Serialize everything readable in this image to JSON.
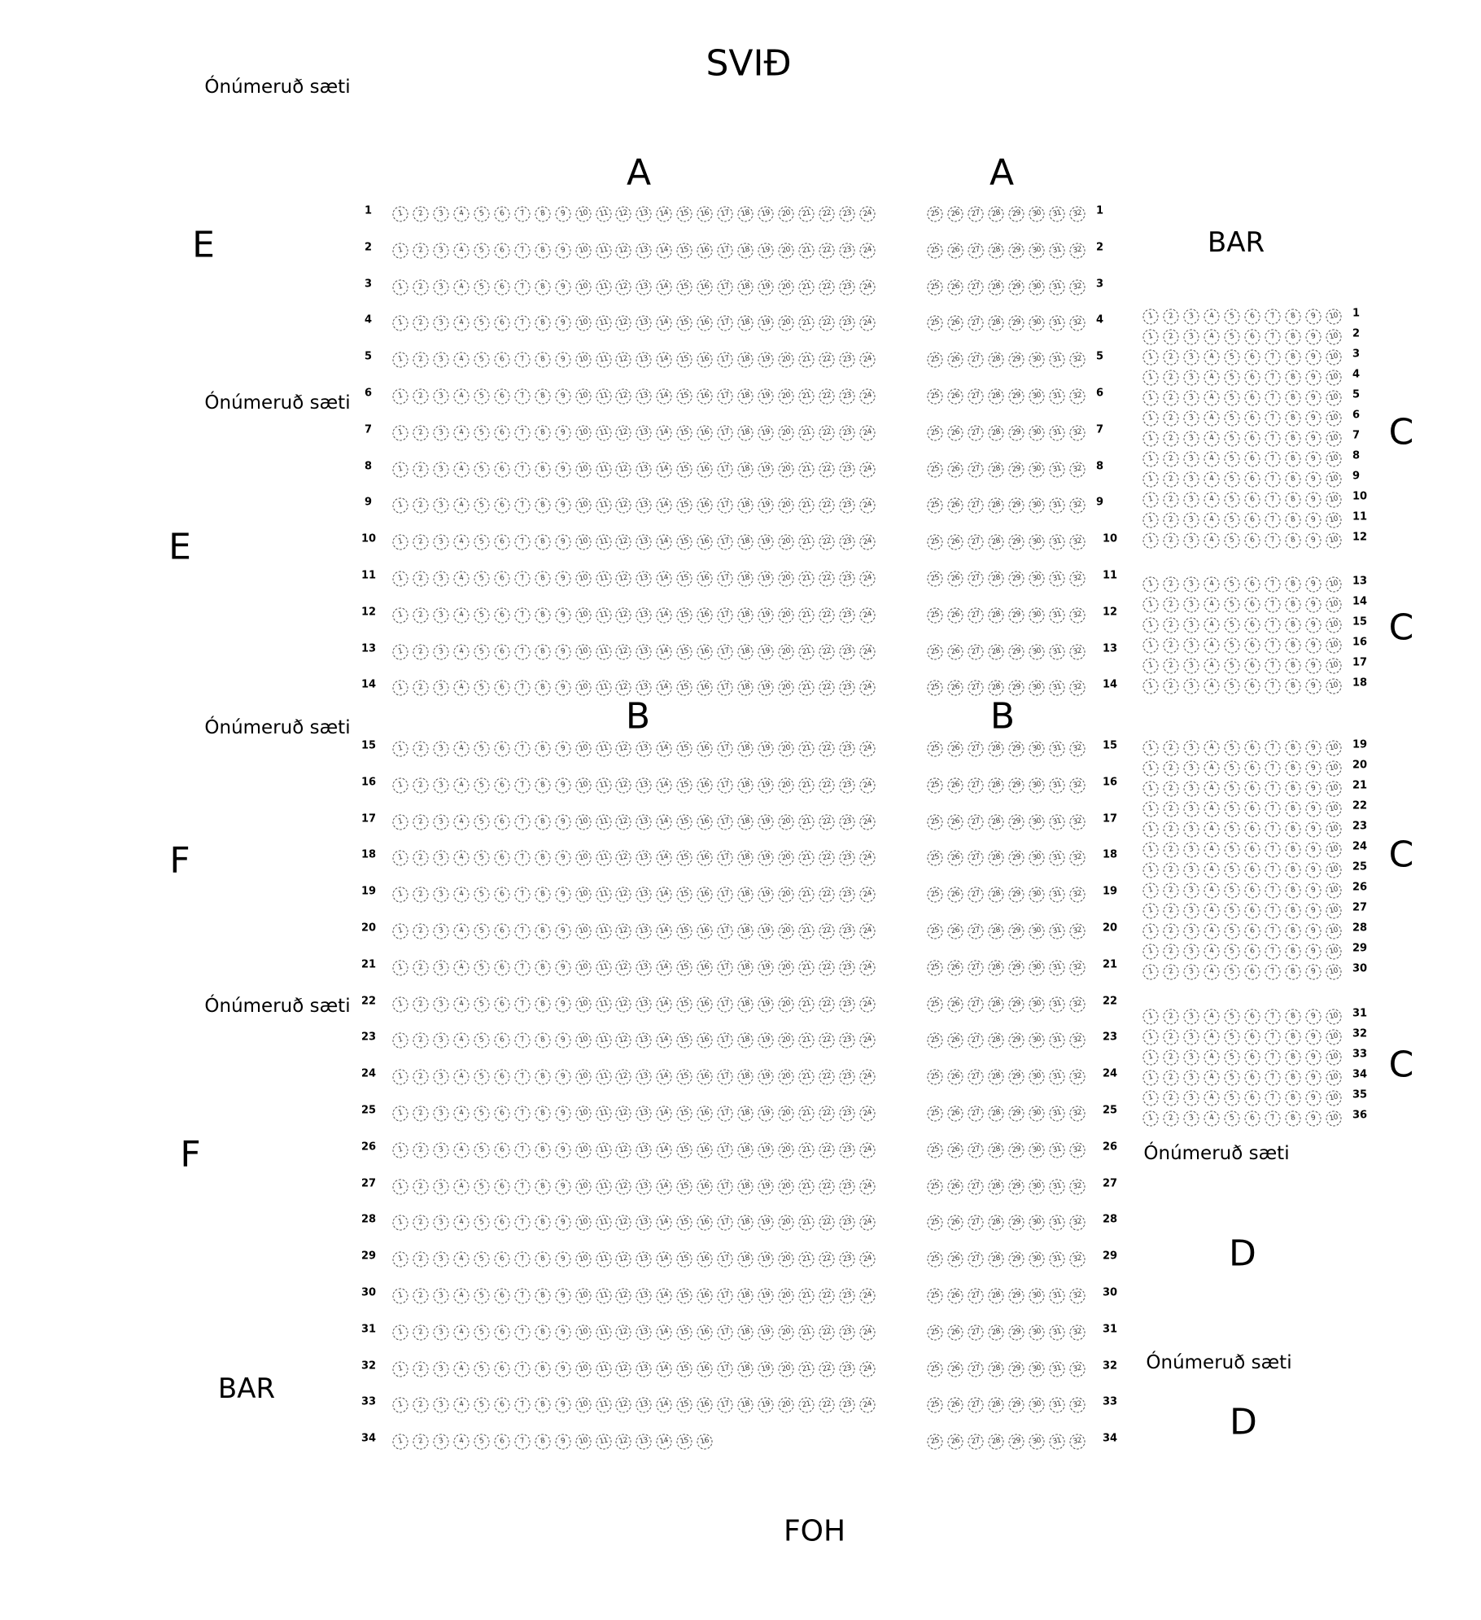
{
  "labels": {
    "stage": "SVIÐ",
    "foh": "FOH",
    "unnumbered": "Ónúmeruð sæti",
    "bar": "BAR",
    "section_a": "A",
    "section_b": "B",
    "section_c": "C",
    "section_d": "D",
    "section_e": "E",
    "section_f": "F"
  },
  "main_block": {
    "rows": [
      {
        "row": "1",
        "left": [
          1,
          24
        ],
        "right": [
          25,
          32
        ]
      },
      {
        "row": "2",
        "left": [
          1,
          24
        ],
        "right": [
          25,
          32
        ]
      },
      {
        "row": "3",
        "left": [
          1,
          24
        ],
        "right": [
          25,
          32
        ]
      },
      {
        "row": "4",
        "left": [
          1,
          24
        ],
        "right": [
          25,
          32
        ]
      },
      {
        "row": "5",
        "left": [
          1,
          24
        ],
        "right": [
          25,
          32
        ]
      },
      {
        "row": "6",
        "left": [
          1,
          24
        ],
        "right": [
          25,
          32
        ]
      },
      {
        "row": "7",
        "left": [
          1,
          24
        ],
        "right": [
          25,
          32
        ]
      },
      {
        "row": "8",
        "left": [
          1,
          24
        ],
        "right": [
          25,
          32
        ]
      },
      {
        "row": "9",
        "left": [
          1,
          24
        ],
        "right": [
          25,
          32
        ]
      },
      {
        "row": "10",
        "left": [
          1,
          24
        ],
        "right": [
          25,
          32
        ]
      },
      {
        "row": "11",
        "left": [
          1,
          24
        ],
        "right": [
          25,
          32
        ]
      },
      {
        "row": "12",
        "left": [
          1,
          24
        ],
        "right": [
          25,
          32
        ]
      },
      {
        "row": "13",
        "left": [
          1,
          24
        ],
        "right": [
          25,
          32
        ]
      },
      {
        "row": "14",
        "left": [
          1,
          24
        ],
        "right": [
          25,
          32
        ]
      },
      {
        "row": "15",
        "left": [
          1,
          24
        ],
        "right": [
          25,
          32
        ]
      },
      {
        "row": "16",
        "left": [
          1,
          24
        ],
        "right": [
          25,
          32
        ]
      },
      {
        "row": "17",
        "left": [
          1,
          24
        ],
        "right": [
          25,
          32
        ]
      },
      {
        "row": "18",
        "left": [
          1,
          24
        ],
        "right": [
          25,
          32
        ]
      },
      {
        "row": "19",
        "left": [
          1,
          24
        ],
        "right": [
          25,
          32
        ]
      },
      {
        "row": "20",
        "left": [
          1,
          24
        ],
        "right": [
          25,
          32
        ]
      },
      {
        "row": "21",
        "left": [
          1,
          24
        ],
        "right": [
          25,
          32
        ]
      },
      {
        "row": "22",
        "left": [
          1,
          24
        ],
        "right": [
          25,
          32
        ]
      },
      {
        "row": "23",
        "left": [
          1,
          24
        ],
        "right": [
          25,
          32
        ]
      },
      {
        "row": "24",
        "left": [
          1,
          24
        ],
        "right": [
          25,
          32
        ]
      },
      {
        "row": "25",
        "left": [
          1,
          24
        ],
        "right": [
          25,
          32
        ]
      },
      {
        "row": "26",
        "left": [
          1,
          24
        ],
        "right": [
          25,
          32
        ]
      },
      {
        "row": "27",
        "left": [
          1,
          24
        ],
        "right": [
          25,
          32
        ]
      },
      {
        "row": "28",
        "left": [
          1,
          24
        ],
        "right": [
          25,
          32
        ]
      },
      {
        "row": "29",
        "left": [
          1,
          24
        ],
        "right": [
          25,
          32
        ]
      },
      {
        "row": "30",
        "left": [
          1,
          24
        ],
        "right": [
          25,
          32
        ]
      },
      {
        "row": "31",
        "left": [
          1,
          24
        ],
        "right": [
          25,
          32
        ]
      },
      {
        "row": "32",
        "left": [
          1,
          24
        ],
        "right": [
          25,
          32
        ]
      },
      {
        "row": "33",
        "left": [
          1,
          24
        ],
        "right": [
          25,
          32
        ]
      },
      {
        "row": "34",
        "left": [
          1,
          16
        ],
        "right": [
          25,
          32
        ]
      }
    ]
  },
  "c_block": {
    "row_count": 36,
    "seats": [
      1,
      10
    ]
  }
}
